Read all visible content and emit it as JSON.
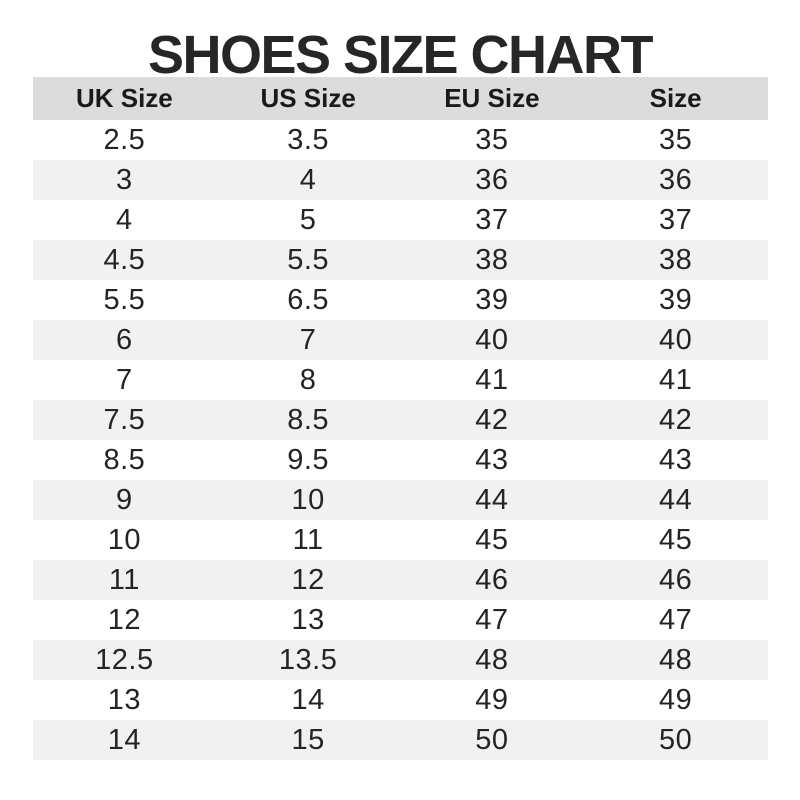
{
  "title": "SHOES SIZE CHART",
  "colors": {
    "header_bg": "#dcdcdc",
    "alt_row_bg": "#f1f1f1",
    "title_color": "#262626",
    "header_text": "#1a1a1a",
    "cell_text": "#242424",
    "page_bg": "#ffffff"
  },
  "table": {
    "headers": [
      "UK Size",
      "US Size",
      "EU Size",
      "Size"
    ],
    "rows": [
      [
        "2.5",
        "3.5",
        "35",
        "35"
      ],
      [
        "3",
        "4",
        "36",
        "36"
      ],
      [
        "4",
        "5",
        "37",
        "37"
      ],
      [
        "4.5",
        "5.5",
        "38",
        "38"
      ],
      [
        "5.5",
        "6.5",
        "39",
        "39"
      ],
      [
        "6",
        "7",
        "40",
        "40"
      ],
      [
        "7",
        "8",
        "41",
        "41"
      ],
      [
        "7.5",
        "8.5",
        "42",
        "42"
      ],
      [
        "8.5",
        "9.5",
        "43",
        "43"
      ],
      [
        "9",
        "10",
        "44",
        "44"
      ],
      [
        "10",
        "11",
        "45",
        "45"
      ],
      [
        "11",
        "12",
        "46",
        "46"
      ],
      [
        "12",
        "13",
        "47",
        "47"
      ],
      [
        "12.5",
        "13.5",
        "48",
        "48"
      ],
      [
        "13",
        "14",
        "49",
        "49"
      ],
      [
        "14",
        "15",
        "50",
        "50"
      ]
    ]
  },
  "chart_data": {
    "type": "table",
    "title": "SHOES SIZE CHART",
    "columns": [
      "UK Size",
      "US Size",
      "EU Size",
      "Size"
    ],
    "rows": [
      [
        "2.5",
        "3.5",
        "35",
        "35"
      ],
      [
        "3",
        "4",
        "36",
        "36"
      ],
      [
        "4",
        "5",
        "37",
        "37"
      ],
      [
        "4.5",
        "5.5",
        "38",
        "38"
      ],
      [
        "5.5",
        "6.5",
        "39",
        "39"
      ],
      [
        "6",
        "7",
        "40",
        "40"
      ],
      [
        "7",
        "8",
        "41",
        "41"
      ],
      [
        "7.5",
        "8.5",
        "42",
        "42"
      ],
      [
        "8.5",
        "9.5",
        "43",
        "43"
      ],
      [
        "9",
        "10",
        "44",
        "44"
      ],
      [
        "10",
        "11",
        "45",
        "45"
      ],
      [
        "11",
        "12",
        "46",
        "46"
      ],
      [
        "12",
        "13",
        "47",
        "47"
      ],
      [
        "12.5",
        "13.5",
        "48",
        "48"
      ],
      [
        "13",
        "14",
        "49",
        "49"
      ],
      [
        "14",
        "15",
        "50",
        "50"
      ]
    ],
    "layout": {
      "header_background": "#dcdcdc",
      "alternating_row_background": "#f1f1f1",
      "grid": false,
      "alignment": "center"
    }
  }
}
